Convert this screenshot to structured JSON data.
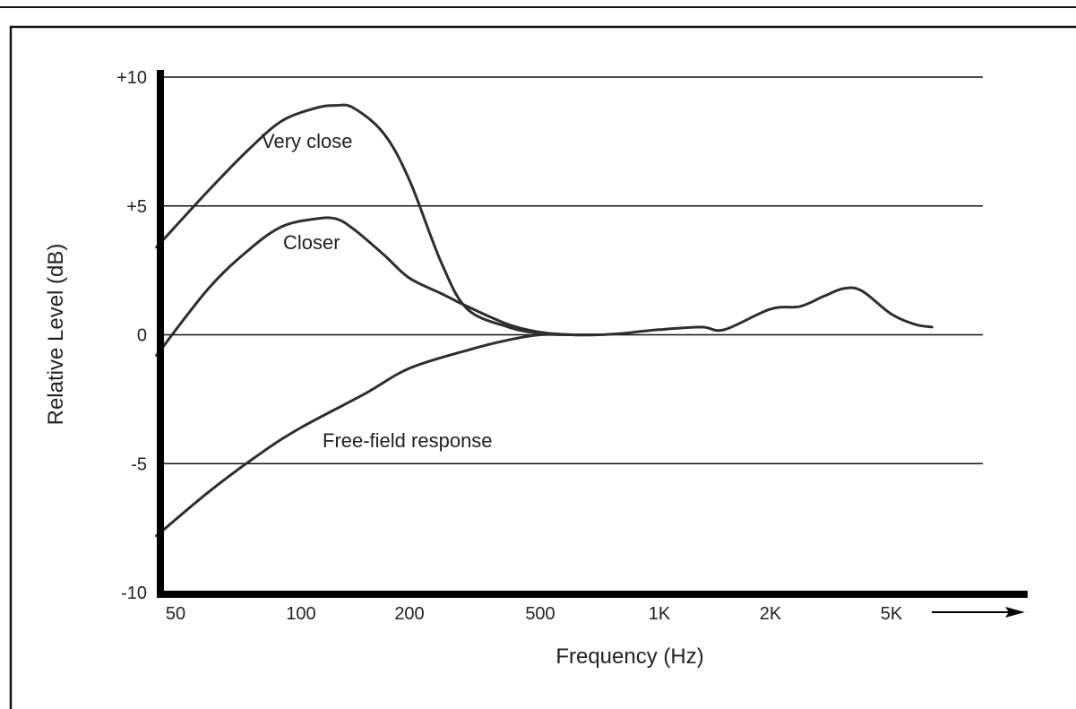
{
  "chart_data": {
    "type": "line",
    "xlabel": "Frequency (Hz)",
    "ylabel": "Relative Level (dB)",
    "xscale": "log",
    "x_ticks": [
      {
        "value": 50,
        "label": "50"
      },
      {
        "value": 100,
        "label": "100"
      },
      {
        "value": 200,
        "label": "200"
      },
      {
        "value": 500,
        "label": "500"
      },
      {
        "value": 1000,
        "label": "1K"
      },
      {
        "value": 2000,
        "label": "2K"
      },
      {
        "value": 5000,
        "label": "5K"
      }
    ],
    "y_ticks": [
      {
        "value": 10,
        "label": "+10"
      },
      {
        "value": 5,
        "label": "+5"
      },
      {
        "value": 0,
        "label": "0"
      },
      {
        "value": -5,
        "label": "-5"
      },
      {
        "value": -10,
        "label": "-10"
      }
    ],
    "ylim": [
      -10,
      10
    ],
    "xlim": [
      45,
      10000
    ],
    "grid": "horizontal",
    "series": [
      {
        "name": "Very close",
        "x": [
          45,
          60,
          75,
          90,
          110,
          125,
          140,
          170,
          200,
          250,
          300,
          400,
          500,
          600,
          700
        ],
        "y": [
          3.4,
          5.6,
          7.2,
          8.3,
          8.8,
          8.9,
          8.8,
          7.8,
          6.0,
          2.8,
          1.0,
          0.3,
          0.05,
          0.0,
          0.0
        ]
      },
      {
        "name": "Closer",
        "x": [
          45,
          60,
          75,
          90,
          110,
          125,
          140,
          170,
          200,
          250,
          300,
          400,
          500,
          600,
          700
        ],
        "y": [
          -0.8,
          1.8,
          3.3,
          4.2,
          4.5,
          4.5,
          4.1,
          3.1,
          2.2,
          1.6,
          1.1,
          0.4,
          0.1,
          0.0,
          0.0
        ]
      },
      {
        "name": "Free-field response",
        "x": [
          45,
          60,
          80,
          100,
          150,
          200,
          300,
          400,
          500,
          600,
          700,
          800,
          1000,
          1300,
          1500,
          2000,
          2500,
          3000,
          3500,
          4000,
          5000,
          6000,
          6800
        ],
        "y": [
          -7.8,
          -6.1,
          -4.6,
          -3.6,
          -2.3,
          -1.3,
          -0.6,
          -0.2,
          0.0,
          0.0,
          0.0,
          0.05,
          0.2,
          0.3,
          0.2,
          1.0,
          1.1,
          1.5,
          1.8,
          1.7,
          0.8,
          0.4,
          0.3
        ]
      }
    ]
  },
  "annotations": {
    "very_close": "Very close",
    "closer": "Closer",
    "free_field": "Free-field response"
  }
}
